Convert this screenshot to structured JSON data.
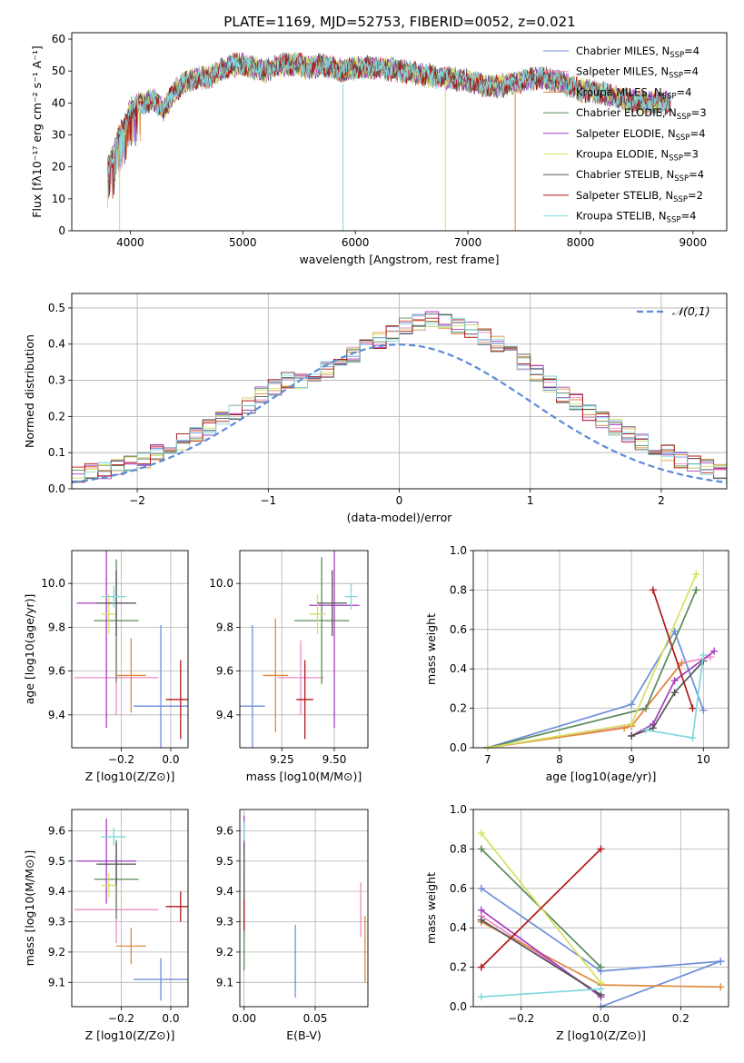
{
  "figure_title": "PLATE=1169, MJD=52753, FIBERID=0052, z=0.021",
  "colors": {
    "Chabrier MILES": "#6d8fd8",
    "Salpeter MILES": "#f08ac6",
    "Kroupa MILES": "#e08a3c",
    "Chabrier ELODIE": "#5a8a5a",
    "Salpeter ELODIE": "#a43fc0",
    "Kroupa ELODIE": "#d6e061",
    "Chabrier STELIB": "#555555",
    "Salpeter STELIB": "#b01818",
    "Kroupa STELIB": "#7fd8dc",
    "normal_curve": "#5b8bd6",
    "grid": "#b0b0b0"
  },
  "chart_data": [
    {
      "id": "spectrum",
      "type": "line",
      "title": "",
      "xlabel": "wavelength [Angstrom, rest frame]",
      "ylabel": "Flux [fλ10⁻¹⁷ erg cm⁻² s⁻¹ A⁻¹]",
      "xlim": [
        3480,
        9300
      ],
      "ylim": [
        0,
        62
      ],
      "xticks": [
        4000,
        5000,
        6000,
        7000,
        8000,
        9000
      ],
      "yticks": [
        0,
        10,
        20,
        30,
        40,
        50,
        60
      ],
      "grid": false,
      "legend": "upper right",
      "x_envelope": [
        3800,
        3850,
        3900,
        3950,
        4000,
        4100,
        4200,
        4300,
        4400,
        4500,
        4600,
        4700,
        4800,
        4900,
        5000,
        5100,
        5200,
        5300,
        5400,
        5500,
        5600,
        5700,
        5800,
        5900,
        6000,
        6200,
        6400,
        6600,
        6800,
        7000,
        7200,
        7400,
        7600,
        7800,
        8000,
        8200,
        8400,
        8600,
        8800
      ],
      "y_envelope": [
        20,
        24,
        30,
        33,
        38,
        40,
        41,
        38,
        44,
        47,
        48,
        48,
        50,
        52,
        52,
        51,
        50,
        52,
        52,
        52,
        51,
        52,
        51,
        50,
        51,
        51,
        50,
        49,
        48,
        47,
        45,
        46,
        48,
        47,
        44,
        43,
        41,
        40,
        40
      ],
      "series": [
        {
          "name": "Chabrier MILES, N_SSP=4"
        },
        {
          "name": "Salpeter MILES, N_SSP=4"
        },
        {
          "name": "Kroupa MILES, N_SSP=4"
        },
        {
          "name": "Chabrier ELODIE, N_SSP=3"
        },
        {
          "name": "Salpeter ELODIE, N_SSP=4"
        },
        {
          "name": "Kroupa ELODIE, N_SSP=3"
        },
        {
          "name": "Chabrier STELIB, N_SSP=4"
        },
        {
          "name": "Salpeter STELIB, N_SSP=2"
        },
        {
          "name": "Kroupa STELIB, N_SSP=4"
        }
      ]
    },
    {
      "id": "residuals",
      "type": "line",
      "title": "",
      "xlabel": "(data-model)/error",
      "ylabel": "Normed distribution",
      "xlim": [
        -2.5,
        2.5
      ],
      "ylim": [
        0,
        0.54
      ],
      "xticks": [
        -2,
        -1,
        0,
        1,
        2
      ],
      "yticks": [
        0.0,
        0.1,
        0.2,
        0.3,
        0.4,
        0.5
      ],
      "grid": true,
      "legend": "upper right",
      "normal_label": "𝒩(0,1)",
      "bin_width": 0.1,
      "histogram_values": [
        0.02,
        0.03,
        0.03,
        0.04,
        0.05,
        0.05,
        0.06,
        0.07,
        0.08,
        0.1,
        0.12,
        0.13,
        0.15,
        0.17,
        0.19,
        0.21,
        0.23,
        0.26,
        0.28,
        0.3,
        0.3,
        0.32,
        0.33,
        0.35,
        0.37,
        0.39,
        0.41,
        0.43,
        0.45,
        0.46,
        0.47,
        0.46,
        0.45,
        0.44,
        0.42,
        0.4,
        0.38,
        0.35,
        0.32,
        0.29,
        0.26,
        0.24,
        0.21,
        0.19,
        0.17,
        0.15,
        0.13,
        0.11,
        0.1,
        0.08,
        0.07,
        0.06,
        0.05,
        0.04,
        0.03,
        0.03
      ]
    },
    {
      "id": "age_vs_Z",
      "type": "scatter",
      "xlabel": "Z [log10(Z/Z⊙)]",
      "ylabel": "age  [log10(age/yr)]",
      "xlim": [
        -0.4,
        0.07
      ],
      "ylim": [
        9.25,
        10.15
      ],
      "xticks": [
        -0.2,
        0.0
      ],
      "yticks": [
        9.4,
        9.6,
        9.8,
        10.0
      ],
      "grid": true,
      "points": [
        {
          "series": "Chabrier MILES",
          "x": -0.04,
          "y": 9.44,
          "xerr": 0.11,
          "yerr": 0.37
        },
        {
          "series": "Salpeter MILES",
          "x": -0.22,
          "y": 9.57,
          "xerr": 0.17,
          "yerr": 0.17
        },
        {
          "series": "Kroupa MILES",
          "x": -0.16,
          "y": 9.58,
          "xerr": 0.06,
          "yerr": 0.17
        },
        {
          "series": "Chabrier ELODIE",
          "x": -0.22,
          "y": 9.83,
          "xerr": 0.09,
          "yerr": 0.28
        },
        {
          "series": "Salpeter ELODIE",
          "x": -0.26,
          "y": 9.91,
          "xerr": 0.12,
          "yerr": 0.57
        },
        {
          "series": "Kroupa ELODIE",
          "x": -0.25,
          "y": 9.86,
          "xerr": 0.03,
          "yerr": 0.09
        },
        {
          "series": "Chabrier STELIB",
          "x": -0.22,
          "y": 9.91,
          "xerr": 0.08,
          "yerr": 0.15
        },
        {
          "series": "Salpeter STELIB",
          "x": 0.04,
          "y": 9.47,
          "xerr": 0.06,
          "yerr": 0.18
        },
        {
          "series": "Kroupa STELIB",
          "x": -0.23,
          "y": 9.94,
          "xerr": 0.05,
          "yerr": 0.05
        }
      ]
    },
    {
      "id": "age_vs_mass",
      "type": "scatter",
      "xlabel": "mass [log10(M/M⊙)]",
      "ylabel": "",
      "xlim": [
        9.05,
        9.66
      ],
      "ylim": [
        9.25,
        10.15
      ],
      "xticks": [
        9.25,
        9.5
      ],
      "yticks": [
        9.4,
        9.6,
        9.8,
        10.0
      ],
      "grid": true,
      "points": [
        {
          "series": "Chabrier MILES",
          "x": 9.11,
          "y": 9.44,
          "xerr": 0.06,
          "yerr": 0.37
        },
        {
          "series": "Salpeter MILES",
          "x": 9.34,
          "y": 9.57,
          "xerr": 0.11,
          "yerr": 0.17
        },
        {
          "series": "Kroupa MILES",
          "x": 9.22,
          "y": 9.58,
          "xerr": 0.06,
          "yerr": 0.26
        },
        {
          "series": "Chabrier ELODIE",
          "x": 9.44,
          "y": 9.83,
          "xerr": 0.13,
          "yerr": 0.29
        },
        {
          "series": "Salpeter ELODIE",
          "x": 9.5,
          "y": 9.9,
          "xerr": 0.12,
          "yerr": 0.56
        },
        {
          "series": "Kroupa ELODIE",
          "x": 9.42,
          "y": 9.86,
          "xerr": 0.04,
          "yerr": 0.09
        },
        {
          "series": "Chabrier STELIB",
          "x": 9.49,
          "y": 9.91,
          "xerr": 0.07,
          "yerr": 0.15
        },
        {
          "series": "Salpeter STELIB",
          "x": 9.36,
          "y": 9.47,
          "xerr": 0.04,
          "yerr": 0.18
        },
        {
          "series": "Kroupa STELIB",
          "x": 9.58,
          "y": 9.94,
          "xerr": 0.03,
          "yerr": 0.06
        }
      ]
    },
    {
      "id": "weight_vs_age",
      "type": "line",
      "xlabel": "age  [log10(age/yr)]",
      "ylabel": "mass weight",
      "xlim": [
        6.8,
        10.35
      ],
      "ylim": [
        0,
        1.0
      ],
      "xticks": [
        7,
        8,
        9,
        10
      ],
      "yticks": [
        0.0,
        0.2,
        0.4,
        0.6,
        0.8,
        1.0
      ],
      "grid": true,
      "series": [
        {
          "name": "Chabrier MILES",
          "x": [
            7.0,
            9.0,
            9.6,
            10.0
          ],
          "y": [
            0.0,
            0.22,
            0.59,
            0.19
          ]
        },
        {
          "name": "Salpeter MILES",
          "x": [
            7.0,
            9.0,
            9.7,
            10.1
          ],
          "y": [
            0.0,
            0.11,
            0.43,
            0.46
          ]
        },
        {
          "name": "Kroupa MILES",
          "x": [
            7.0,
            8.9,
            9.0,
            9.7
          ],
          "y": [
            0.0,
            0.1,
            0.11,
            0.43
          ]
        },
        {
          "name": "Chabrier ELODIE",
          "x": [
            7.0,
            9.2,
            9.9
          ],
          "y": [
            0.0,
            0.2,
            0.8
          ]
        },
        {
          "name": "Salpeter ELODIE",
          "x": [
            9.0,
            9.3,
            9.6,
            10.15
          ],
          "y": [
            0.06,
            0.12,
            0.34,
            0.49
          ]
        },
        {
          "name": "Kroupa ELODIE",
          "x": [
            7.0,
            9.0,
            9.9
          ],
          "y": [
            0.0,
            0.12,
            0.88
          ]
        },
        {
          "name": "Chabrier STELIB",
          "x": [
            9.0,
            9.3,
            9.6,
            10.0
          ],
          "y": [
            0.06,
            0.1,
            0.28,
            0.44
          ]
        },
        {
          "name": "Salpeter STELIB",
          "x": [
            9.3,
            9.85
          ],
          "y": [
            0.8,
            0.2
          ]
        },
        {
          "name": "Kroupa STELIB",
          "x": [
            9.2,
            9.85,
            10.0
          ],
          "y": [
            0.09,
            0.05,
            0.47
          ]
        }
      ]
    },
    {
      "id": "mass_vs_Z",
      "type": "scatter",
      "xlabel": "Z [log10(Z/Z⊙)]",
      "ylabel": "mass [log10(M/M⊙)]",
      "xlim": [
        -0.4,
        0.07
      ],
      "ylim": [
        9.02,
        9.67
      ],
      "xticks": [
        -0.2,
        0.0
      ],
      "yticks": [
        9.1,
        9.2,
        9.3,
        9.4,
        9.5,
        9.6
      ],
      "grid": true,
      "points": [
        {
          "series": "Chabrier MILES",
          "x": -0.04,
          "y": 9.11,
          "xerr": 0.11,
          "yerr": 0.07
        },
        {
          "series": "Salpeter MILES",
          "x": -0.22,
          "y": 9.34,
          "xerr": 0.17,
          "yerr": 0.11
        },
        {
          "series": "Kroupa MILES",
          "x": -0.16,
          "y": 9.22,
          "xerr": 0.06,
          "yerr": 0.06
        },
        {
          "series": "Chabrier ELODIE",
          "x": -0.22,
          "y": 9.44,
          "xerr": 0.09,
          "yerr": 0.13
        },
        {
          "series": "Salpeter ELODIE",
          "x": -0.26,
          "y": 9.5,
          "xerr": 0.12,
          "yerr": 0.14
        },
        {
          "series": "Kroupa ELODIE",
          "x": -0.25,
          "y": 9.42,
          "xerr": 0.03,
          "yerr": 0.04
        },
        {
          "series": "Chabrier STELIB",
          "x": -0.22,
          "y": 9.49,
          "xerr": 0.08,
          "yerr": 0.07
        },
        {
          "series": "Salpeter STELIB",
          "x": 0.04,
          "y": 9.35,
          "xerr": 0.06,
          "yerr": 0.05
        },
        {
          "series": "Kroupa STELIB",
          "x": -0.23,
          "y": 9.58,
          "xerr": 0.05,
          "yerr": 0.03
        }
      ]
    },
    {
      "id": "mass_vs_ebv",
      "type": "scatter",
      "xlabel": "E(B-V)",
      "ylabel": "",
      "xlim": [
        -0.003,
        0.087
      ],
      "ylim": [
        9.02,
        9.67
      ],
      "xticks": [
        0.0,
        0.05
      ],
      "yticks": [
        9.1,
        9.2,
        9.3,
        9.4,
        9.5,
        9.6
      ],
      "grid": true,
      "points": [
        {
          "series": "Chabrier MILES",
          "x": 0.036,
          "y": 9.17,
          "xerr": 0,
          "yerr": 0.12
        },
        {
          "series": "Salpeter MILES",
          "x": 0.082,
          "y": 9.34,
          "xerr": 0,
          "yerr": 0.09
        },
        {
          "series": "Kroupa MILES",
          "x": 0.085,
          "y": 9.21,
          "xerr": 0,
          "yerr": 0.11
        },
        {
          "series": "Chabrier ELODIE",
          "x": 0.0,
          "y": 9.3,
          "xerr": 0,
          "yerr": 0.16
        },
        {
          "series": "Salpeter ELODIE",
          "x": 0.0,
          "y": 9.56,
          "xerr": 0,
          "yerr": 0.09
        },
        {
          "series": "Kroupa ELODIE",
          "x": 0.0,
          "y": 9.45,
          "xerr": 0,
          "yerr": 0.08
        },
        {
          "series": "Chabrier STELIB",
          "x": 0.0,
          "y": 9.46,
          "xerr": 0,
          "yerr": 0.1
        },
        {
          "series": "Salpeter STELIB",
          "x": 0.0,
          "y": 9.32,
          "xerr": 0,
          "yerr": 0.05
        },
        {
          "series": "Kroupa STELIB",
          "x": 0.0,
          "y": 9.6,
          "xerr": 0,
          "yerr": 0.03
        }
      ]
    },
    {
      "id": "weight_vs_Z",
      "type": "line",
      "xlabel": "Z [log10(Z/Z⊙)]",
      "ylabel": "mass weight",
      "xlim": [
        -0.32,
        0.32
      ],
      "ylim": [
        0,
        1.0
      ],
      "xticks": [
        -0.2,
        0.0,
        0.2
      ],
      "yticks": [
        0.0,
        0.2,
        0.4,
        0.6,
        0.8,
        1.0
      ],
      "grid": true,
      "series": [
        {
          "name": "Chabrier MILES",
          "x": [
            -0.3,
            0.0,
            0.3
          ],
          "y": [
            0.6,
            0.18,
            0.23
          ]
        },
        {
          "name": "Chabrier MILES b",
          "x": [
            0.0,
            0.3
          ],
          "y": [
            0.0,
            0.23
          ]
        },
        {
          "name": "Salpeter MILES",
          "x": [
            -0.3,
            0.0
          ],
          "y": [
            0.46,
            0.06
          ]
        },
        {
          "name": "Kroupa MILES",
          "x": [
            -0.3,
            0.0,
            0.3
          ],
          "y": [
            0.43,
            0.11,
            0.1
          ]
        },
        {
          "name": "Chabrier ELODIE",
          "x": [
            -0.3,
            0.0
          ],
          "y": [
            0.8,
            0.2
          ]
        },
        {
          "name": "Salpeter ELODIE",
          "x": [
            -0.3,
            0.0
          ],
          "y": [
            0.49,
            0.05
          ]
        },
        {
          "name": "Kroupa ELODIE",
          "x": [
            -0.3,
            0.0
          ],
          "y": [
            0.88,
            0.12
          ]
        },
        {
          "name": "Chabrier STELIB",
          "x": [
            -0.3,
            0.0
          ],
          "y": [
            0.44,
            0.06
          ]
        },
        {
          "name": "Salpeter STELIB",
          "x": [
            -0.3,
            0.0
          ],
          "y": [
            0.2,
            0.8
          ]
        },
        {
          "name": "Kroupa STELIB",
          "x": [
            -0.3,
            0.0
          ],
          "y": [
            0.05,
            0.09
          ]
        }
      ]
    }
  ]
}
